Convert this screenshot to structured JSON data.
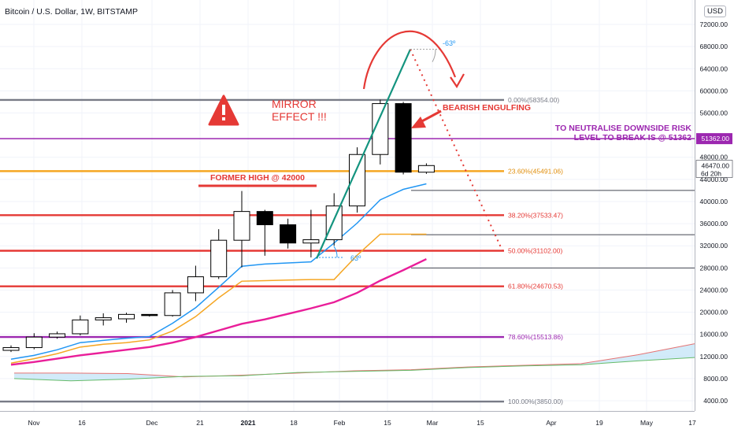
{
  "header": {
    "title": "Bitcoin / U.S. Dollar, 1W, BITSTAMP",
    "currency": "USD"
  },
  "chart_data": {
    "type": "candlestick",
    "x_ticks": [
      "Nov",
      "16",
      "Dec",
      "21",
      "2021",
      "18",
      "Feb",
      "15",
      "Mar",
      "15",
      "Apr",
      "19",
      "May",
      "17"
    ],
    "y_ticks": [
      "72000.00",
      "68000.00",
      "64000.00",
      "60000.00",
      "56000.00",
      "48000.00",
      "44000.00",
      "40000.00",
      "36000.00",
      "32000.00",
      "28000.00",
      "24000.00",
      "20000.00",
      "16000.00",
      "12000.00",
      "8000.00",
      "4000.00"
    ],
    "ylim": [
      3000,
      74000
    ],
    "candles": [
      {
        "o": 13100,
        "h": 14000,
        "l": 12800,
        "c": 13600
      },
      {
        "o": 13600,
        "h": 16200,
        "l": 13300,
        "c": 15500
      },
      {
        "o": 15500,
        "h": 16500,
        "l": 15200,
        "c": 16100
      },
      {
        "o": 16100,
        "h": 19400,
        "l": 15800,
        "c": 18600
      },
      {
        "o": 18600,
        "h": 19800,
        "l": 17600,
        "c": 19000
      },
      {
        "o": 18800,
        "h": 19900,
        "l": 18100,
        "c": 19600
      },
      {
        "o": 19600,
        "h": 19500,
        "l": 19200,
        "c": 19400
      },
      {
        "o": 19400,
        "h": 24000,
        "l": 19200,
        "c": 23500
      },
      {
        "o": 23500,
        "h": 28400,
        "l": 22000,
        "c": 26400
      },
      {
        "o": 26400,
        "h": 35000,
        "l": 26000,
        "c": 33000
      },
      {
        "o": 33000,
        "h": 41900,
        "l": 28100,
        "c": 38200
      },
      {
        "o": 38200,
        "h": 38500,
        "l": 30200,
        "c": 35800
      },
      {
        "o": 35800,
        "h": 36900,
        "l": 31500,
        "c": 32500
      },
      {
        "o": 32500,
        "h": 38500,
        "l": 29900,
        "c": 33100
      },
      {
        "o": 33100,
        "h": 41500,
        "l": 32000,
        "c": 39200
      },
      {
        "o": 39200,
        "h": 49800,
        "l": 38000,
        "c": 48500
      },
      {
        "o": 48500,
        "h": 58400,
        "l": 46700,
        "c": 57700
      },
      {
        "o": 57700,
        "h": 58000,
        "l": 44900,
        "c": 45300
      },
      {
        "o": 45300,
        "h": 46900,
        "l": 45000,
        "c": 46500
      }
    ],
    "fib_levels": [
      {
        "label": "0.00%(58354.00)",
        "value": 58354,
        "color": "#787b86"
      },
      {
        "label": "23.60%(45491.06)",
        "value": 45491.06,
        "color": "#f5a623"
      },
      {
        "label": "38.20%(37533.47)",
        "value": 37533.47,
        "color": "#e53935"
      },
      {
        "label": "50.00%(31102.00)",
        "value": 31102,
        "color": "#e53935"
      },
      {
        "label": "61.80%(24670.53)",
        "value": 24670.53,
        "color": "#e53935"
      },
      {
        "label": "78.60%(15513.86)",
        "value": 15513.86,
        "color": "#9c27b0"
      },
      {
        "label": "100.00%(3850.00)",
        "value": 3850,
        "color": "#787b86"
      }
    ],
    "horizontal_lines": [
      42000,
      34000,
      28000
    ],
    "purple_level": 51362,
    "price_labels": [
      {
        "text": "51362.00",
        "value": 51362,
        "color": "#9c27b0"
      },
      {
        "text": "46470.00",
        "value": 46470,
        "color": "#ffffff"
      }
    ],
    "countdown": "6d 20h",
    "ma_blue": [
      11500,
      12200,
      13200,
      14500,
      14900,
      15300,
      15600,
      18000,
      20800,
      24500,
      28300,
      28700,
      28900,
      29100,
      32500,
      36100,
      40300,
      42200,
      43200
    ],
    "ma_orange": [
      10800,
      11600,
      12500,
      13700,
      14200,
      14500,
      15000,
      16600,
      19200,
      22600,
      25600,
      25700,
      25800,
      25900,
      25900,
      30300,
      34100,
      34100,
      34100
    ],
    "ma_pink": [
      10500,
      11000,
      11600,
      12200,
      12700,
      13200,
      13700,
      14500,
      15500,
      16700,
      17900,
      18700,
      19700,
      20700,
      21800,
      23500,
      25700,
      27600,
      29600
    ],
    "cloud_lower": [
      8000,
      7600,
      7900,
      8400,
      8500,
      9100,
      9300,
      9500,
      10000,
      10300,
      10500,
      11200,
      11800
    ],
    "cloud_upper": [
      9000,
      9000,
      8900,
      8300,
      8600,
      9000,
      9400,
      9600,
      10100,
      10400,
      10700,
      12300,
      14300
    ],
    "annotations": {
      "mirror": "MIRROR\nEFFECT !!!",
      "bearish": "BEARISH ENGULFING",
      "former_high": "FORMER HIGH @ 42000",
      "neutralise": "TO NEUTRALISE DOWNSIDE RISK\nLEVEL TO BREAK IS @ 51362",
      "angle_top": "-63º",
      "angle_bottom": "63º"
    },
    "colors": {
      "bull_body": "#ffffff",
      "bear_body": "#000000",
      "wick": "#000000",
      "blue": "#2196f3",
      "orange": "#f5a623",
      "pink": "#e91e99",
      "teal": "#14947f",
      "red": "#e53935",
      "purple": "#9c27b0"
    }
  }
}
